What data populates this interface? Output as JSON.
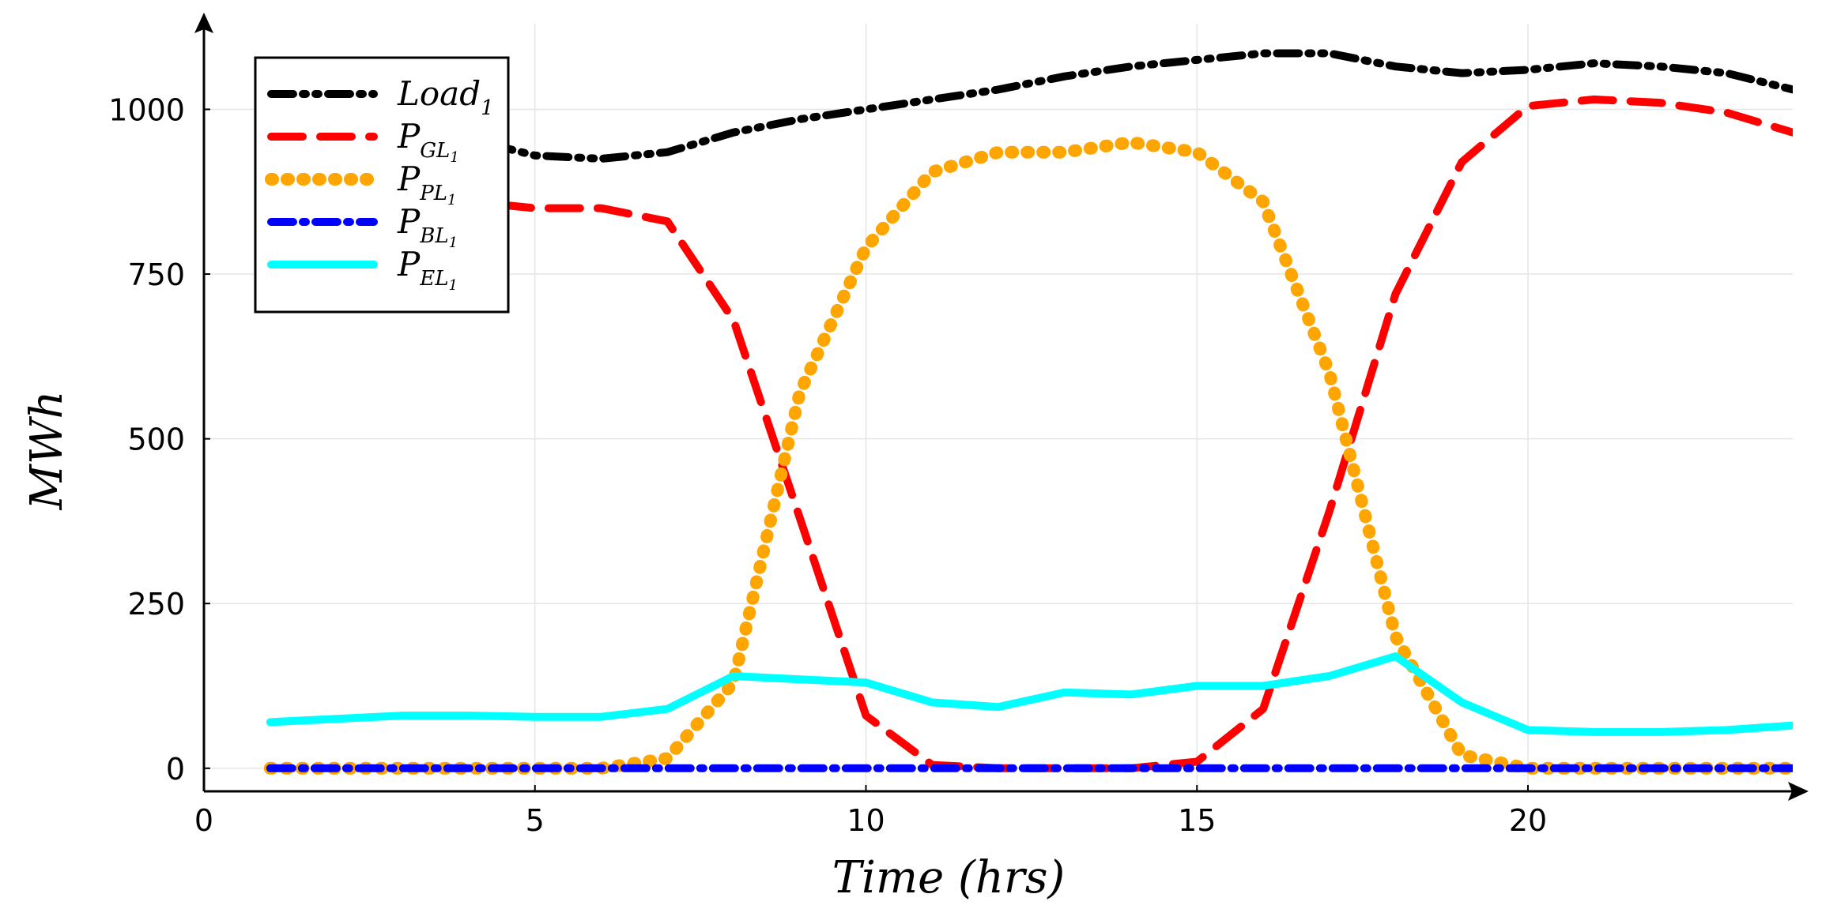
{
  "chart_data": {
    "type": "line",
    "xlabel": "Time (hrs)",
    "ylabel": "MWh",
    "xlim": [
      0,
      24
    ],
    "ylim": [
      -35,
      1130
    ],
    "x_ticks": [
      0,
      5,
      10,
      15,
      20
    ],
    "y_ticks": [
      0,
      250,
      500,
      750,
      1000
    ],
    "grid": true,
    "legend_position": "top-left",
    "x": [
      1,
      2,
      3,
      4,
      5,
      6,
      7,
      8,
      9,
      10,
      11,
      12,
      13,
      14,
      15,
      16,
      17,
      18,
      19,
      20,
      21,
      22,
      23,
      24
    ],
    "series": [
      {
        "name": "Load_1",
        "label_main": "Load",
        "label_sub": "1",
        "color": "#000000",
        "style": "dashdotdot",
        "values": [
          1030,
          1000,
          975,
          955,
          930,
          925,
          935,
          965,
          985,
          1000,
          1015,
          1030,
          1050,
          1065,
          1075,
          1085,
          1085,
          1065,
          1055,
          1060,
          1070,
          1065,
          1055,
          1030
        ]
      },
      {
        "name": "P_GL1",
        "label_main": "P",
        "label_sub": "GL",
        "label_subsub": "1",
        "color": "#ff0000",
        "style": "dash",
        "values": [
          975,
          925,
          880,
          860,
          850,
          850,
          830,
          680,
          380,
          80,
          5,
          0,
          0,
          0,
          10,
          90,
          390,
          720,
          920,
          1005,
          1015,
          1010,
          995,
          965
        ]
      },
      {
        "name": "P_PL1",
        "label_main": "P",
        "label_sub": "PL",
        "label_subsub": "1",
        "color": "#ffa500",
        "style": "dot",
        "values": [
          0,
          0,
          0,
          0,
          0,
          0,
          15,
          130,
          570,
          790,
          905,
          935,
          935,
          950,
          935,
          860,
          600,
          200,
          20,
          0,
          0,
          0,
          0,
          0
        ]
      },
      {
        "name": "P_BL1",
        "label_main": "P",
        "label_sub": "BL",
        "label_subsub": "1",
        "color": "#0000ff",
        "style": "dashdot",
        "values": [
          0,
          0,
          0,
          0,
          0,
          0,
          0,
          0,
          0,
          0,
          0,
          0,
          0,
          0,
          0,
          0,
          0,
          0,
          0,
          0,
          0,
          0,
          0,
          0
        ]
      },
      {
        "name": "P_EL1",
        "label_main": "P",
        "label_sub": "EL",
        "label_subsub": "1",
        "color": "#00ffff",
        "style": "solid",
        "values": [
          70,
          75,
          80,
          80,
          78,
          78,
          90,
          140,
          135,
          130,
          100,
          93,
          115,
          112,
          125,
          125,
          140,
          170,
          100,
          58,
          55,
          55,
          58,
          65
        ]
      }
    ]
  }
}
